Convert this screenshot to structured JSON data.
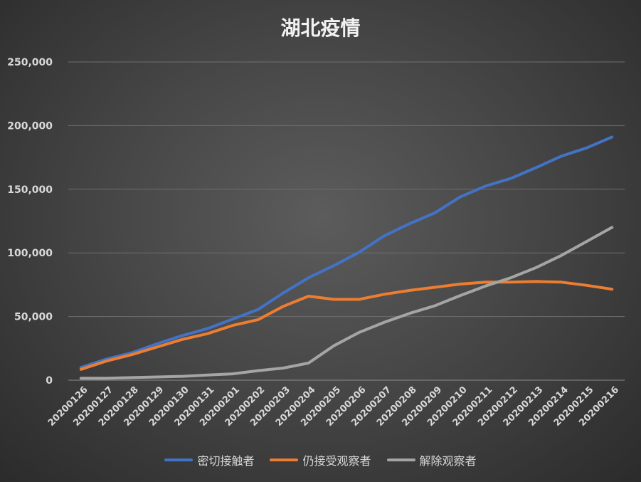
{
  "chart_data": {
    "type": "line",
    "title": "湖北疫情",
    "xlabel": "",
    "ylabel": "",
    "ylim": [
      0,
      250000
    ],
    "y_ticks": [
      {
        "value": 0,
        "label": "0"
      },
      {
        "value": 50000,
        "label": "50,000"
      },
      {
        "value": 100000,
        "label": "100,000"
      },
      {
        "value": 150000,
        "label": "150,000"
      },
      {
        "value": 200000,
        "label": "200,000"
      },
      {
        "value": 250000,
        "label": "250,000"
      }
    ],
    "grid": true,
    "legend_position": "bottom",
    "categories": [
      "20200126",
      "20200127",
      "20200128",
      "20200129",
      "20200130",
      "20200131",
      "20200201",
      "20200202",
      "20200203",
      "20200204",
      "20200205",
      "20200206",
      "20200207",
      "20200208",
      "20200209",
      "20200210",
      "20200211",
      "20200212",
      "20200213",
      "20200214",
      "20200215",
      "20200216"
    ],
    "series": [
      {
        "name": "密切接触者",
        "color": "#4472c4",
        "values": [
          10000,
          16500,
          21500,
          28500,
          35000,
          40500,
          48000,
          55500,
          68500,
          80500,
          90000,
          100500,
          113500,
          123000,
          131500,
          144000,
          152500,
          158500,
          167000,
          176000,
          182500,
          191000
        ]
      },
      {
        "name": "仍接受观察者",
        "color": "#ed7d31",
        "values": [
          8500,
          15000,
          20000,
          26000,
          32000,
          36500,
          43000,
          47500,
          58000,
          66000,
          63500,
          63500,
          67500,
          70500,
          73000,
          75500,
          77000,
          77000,
          77500,
          77000,
          74500,
          71500
        ]
      },
      {
        "name": "解除观察者",
        "color": "#a5a5a5",
        "values": [
          1500,
          1500,
          2000,
          2500,
          3000,
          4000,
          5000,
          7500,
          9500,
          13500,
          27000,
          37500,
          45500,
          52500,
          58500,
          66500,
          74000,
          80500,
          88500,
          98000,
          109000,
          120000
        ]
      }
    ]
  }
}
